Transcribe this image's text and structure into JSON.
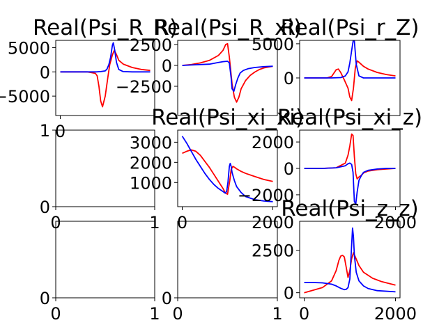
{
  "figure": {
    "red_color": "#ff0000",
    "blue_color": "#0000ff"
  },
  "chart_data": [
    {
      "type": "line",
      "title": "Real(Psi_R_R)",
      "xlim": [
        -100,
        2100
      ],
      "ylim": [
        -9000,
        6500
      ],
      "x_ticks": [
        {
          "value": 0,
          "label": "0"
        }
      ],
      "y_ticks": [
        {
          "value": 5000,
          "label": "5000"
        },
        {
          "value": 0,
          "label": "0"
        },
        {
          "value": -5000,
          "label": "−5000"
        }
      ],
      "series": [
        {
          "color": "#ff0000",
          "x": [
            0,
            600,
            780,
            820,
            860,
            900,
            940,
            1000,
            1060,
            1100,
            1160,
            1200,
            1250,
            1300,
            1400,
            1600,
            1800,
            2000
          ],
          "y": [
            0,
            0,
            -300,
            -800,
            -3000,
            -6000,
            -7200,
            -5000,
            -1000,
            1500,
            3500,
            4400,
            3600,
            2400,
            1600,
            900,
            500,
            300
          ]
        },
        {
          "color": "#0000ff",
          "x": [
            0,
            700,
            800,
            900,
            1000,
            1040,
            1080,
            1120,
            1160,
            1180,
            1210,
            1250,
            1300,
            1400,
            1600,
            1800,
            2000
          ],
          "y": [
            0,
            0,
            0,
            50,
            200,
            600,
            1500,
            3000,
            5500,
            6000,
            4500,
            2000,
            500,
            50,
            0,
            0,
            0
          ]
        }
      ]
    },
    {
      "type": "line",
      "title": "Real(Psi_R_xi)",
      "xlim": [
        -100,
        2100
      ],
      "ylim": [
        -6000,
        3000
      ],
      "x_ticks": [],
      "y_ticks": [
        {
          "value": 2500,
          "label": "2500"
        },
        {
          "value": 0,
          "label": "0"
        },
        {
          "value": -2500,
          "label": "−2500"
        }
      ],
      "series": [
        {
          "color": "#ff0000",
          "x": [
            0,
            200,
            400,
            600,
            800,
            900,
            960,
            1000,
            1040,
            1100,
            1150,
            1200,
            1250,
            1300,
            1400,
            1500,
            1600,
            1700,
            1800,
            1900,
            2000
          ],
          "y": [
            0,
            100,
            300,
            600,
            1200,
            1800,
            2500,
            2600,
            1000,
            -2200,
            -3800,
            -4400,
            -3800,
            -2800,
            -1800,
            -1200,
            -800,
            -500,
            -300,
            -200,
            -100
          ]
        },
        {
          "color": "#0000ff",
          "x": [
            0,
            200,
            600,
            800,
            900,
            1000,
            1040,
            1080,
            1100,
            1140,
            1180,
            1230,
            1280,
            1350,
            1450,
            1600,
            1800,
            2000
          ],
          "y": [
            0,
            50,
            150,
            350,
            450,
            500,
            300,
            -1500,
            -2800,
            -3100,
            -2300,
            -1500,
            -900,
            -600,
            -400,
            -250,
            -150,
            -100
          ]
        }
      ]
    },
    {
      "type": "line",
      "title": "Real(Psi_r_Z)",
      "xlim": [
        -100,
        2100
      ],
      "ylim": [
        -5500,
        5500
      ],
      "x_ticks": [],
      "y_ticks": [
        {
          "value": 5000,
          "label": "5000"
        },
        {
          "value": 0,
          "label": "0"
        }
      ],
      "series": [
        {
          "color": "#ff0000",
          "x": [
            0,
            500,
            600,
            700,
            750,
            800,
            880,
            960,
            1000,
            1040,
            1080,
            1120,
            1160,
            1200,
            1300,
            1400,
            1600,
            1800,
            2000
          ],
          "y": [
            0,
            0,
            200,
            1200,
            1300,
            800,
            -300,
            -1500,
            -2800,
            -3300,
            -1500,
            1500,
            2500,
            2300,
            1700,
            1300,
            800,
            500,
            300
          ]
        },
        {
          "color": "#0000ff",
          "x": [
            0,
            600,
            800,
            900,
            960,
            1000,
            1040,
            1080,
            1100,
            1140,
            1200,
            1300,
            1500,
            2000
          ],
          "y": [
            0,
            0,
            50,
            300,
            900,
            2200,
            4000,
            5700,
            5400,
            2000,
            300,
            0,
            0,
            0
          ]
        }
      ]
    },
    {
      "type": "line",
      "title": "",
      "xlim": [
        0,
        1
      ],
      "ylim": [
        0,
        1
      ],
      "x_ticks": [
        {
          "value": 0,
          "label": "0"
        },
        {
          "value": 1,
          "label": "1"
        }
      ],
      "y_ticks": [
        {
          "value": 0,
          "label": "0"
        },
        {
          "value": 1,
          "label": "1"
        }
      ],
      "series": []
    },
    {
      "type": "line",
      "title": "Real(Psi_xi_xi)",
      "xlim": [
        -100,
        2100
      ],
      "ylim": [
        -200,
        3600
      ],
      "x_ticks": [
        {
          "value": 0,
          "label": "0"
        },
        {
          "value": 2000,
          "label": "2000"
        }
      ],
      "y_ticks": [
        {
          "value": 1000,
          "label": "1000"
        },
        {
          "value": 2000,
          "label": "2000"
        },
        {
          "value": 3000,
          "label": "3000"
        }
      ],
      "series": [
        {
          "color": "#ff0000",
          "x": [
            0,
            100,
            200,
            300,
            400,
            500,
            600,
            700,
            800,
            900,
            950,
            1000,
            1050,
            1080,
            1120,
            1160,
            1200,
            1300,
            1400,
            1600,
            1800,
            2000
          ],
          "y": [
            2450,
            2550,
            2620,
            2550,
            2350,
            2050,
            1750,
            1400,
            1050,
            700,
            480,
            420,
            1100,
            1650,
            1800,
            1750,
            1680,
            1550,
            1450,
            1300,
            1150,
            1050
          ]
        },
        {
          "color": "#0000ff",
          "x": [
            0,
            100,
            200,
            300,
            400,
            500,
            600,
            700,
            800,
            900,
            950,
            980,
            1010,
            1040,
            1060,
            1080,
            1100,
            1150,
            1200,
            1300,
            1400,
            1600,
            1800,
            2000
          ],
          "y": [
            3300,
            2950,
            2550,
            2150,
            1800,
            1450,
            1150,
            900,
            700,
            550,
            470,
            550,
            1000,
            1800,
            1950,
            1800,
            1500,
            1100,
            800,
            500,
            300,
            150,
            80,
            50
          ]
        }
      ]
    },
    {
      "type": "line",
      "title": "Real(Psi_xi_z)",
      "xlim": [
        -100,
        2100
      ],
      "ylim": [
        -2900,
        2900
      ],
      "x_ticks": [
        {
          "value": 2000,
          "label": "2000"
        }
      ],
      "y_ticks": [
        {
          "value": 2000,
          "label": "2000"
        },
        {
          "value": 0,
          "label": "0"
        },
        {
          "value": -2000,
          "label": "−2000"
        }
      ],
      "series": [
        {
          "color": "#ff0000",
          "x": [
            0,
            400,
            700,
            900,
            960,
            1000,
            1040,
            1070,
            1100,
            1130,
            1160,
            1200,
            1260,
            1300,
            1400,
            1600,
            1800,
            2000
          ],
          "y": [
            0,
            0,
            50,
            400,
            1000,
            1700,
            2600,
            2500,
            900,
            -400,
            -800,
            -650,
            -500,
            -350,
            -200,
            -100,
            -50,
            0
          ]
        },
        {
          "color": "#0000ff",
          "x": [
            0,
            400,
            700,
            900,
            960,
            1000,
            1040,
            1070,
            1100,
            1130,
            1160,
            1200,
            1260,
            1300,
            1400,
            1600,
            1800,
            2000
          ],
          "y": [
            0,
            0,
            50,
            200,
            350,
            400,
            300,
            -300,
            -2500,
            -2700,
            -1800,
            -900,
            -500,
            -300,
            -150,
            -50,
            0,
            0
          ]
        }
      ]
    },
    {
      "type": "line",
      "title": "",
      "xlim": [
        0,
        1
      ],
      "ylim": [
        0,
        1
      ],
      "x_ticks": [
        {
          "value": 0,
          "label": "0"
        },
        {
          "value": 1,
          "label": "1"
        }
      ],
      "y_ticks": [
        {
          "value": 0,
          "label": "0"
        }
      ],
      "series": []
    },
    {
      "type": "line",
      "title": "",
      "xlim": [
        0,
        1
      ],
      "ylim": [
        0,
        1
      ],
      "x_ticks": [
        {
          "value": 0,
          "label": "0"
        },
        {
          "value": 1,
          "label": "1"
        }
      ],
      "y_ticks": [
        {
          "value": 0,
          "label": "0"
        }
      ],
      "series": []
    },
    {
      "type": "line",
      "title": "Real(Psi_z_z)",
      "xlim": [
        -100,
        2100
      ],
      "ylim": [
        -300,
        4200
      ],
      "x_ticks": [
        {
          "value": 0,
          "label": "0"
        },
        {
          "value": 2000,
          "label": "2000"
        }
      ],
      "y_ticks": [
        {
          "value": 2500,
          "label": "2500"
        },
        {
          "value": 0,
          "label": "0"
        }
      ],
      "series": [
        {
          "color": "#ff0000",
          "x": [
            0,
            200,
            400,
            600,
            700,
            760,
            800,
            840,
            880,
            920,
            960,
            1000,
            1040,
            1080,
            1120,
            1200,
            1300,
            1500,
            1700,
            2000
          ],
          "y": [
            0,
            150,
            300,
            700,
            1300,
            1900,
            2150,
            2200,
            2100,
            1500,
            900,
            1300,
            2000,
            2350,
            2100,
            1600,
            1200,
            850,
            650,
            450
          ]
        },
        {
          "color": "#0000ff",
          "x": [
            0,
            200,
            400,
            600,
            700,
            800,
            880,
            920,
            960,
            1000,
            1040,
            1060,
            1080,
            1100,
            1140,
            1200,
            1300,
            1400,
            1600,
            2000
          ],
          "y": [
            600,
            600,
            580,
            500,
            400,
            260,
            180,
            200,
            300,
            800,
            2800,
            3800,
            3300,
            2200,
            1200,
            700,
            400,
            250,
            120,
            50
          ]
        }
      ]
    }
  ]
}
